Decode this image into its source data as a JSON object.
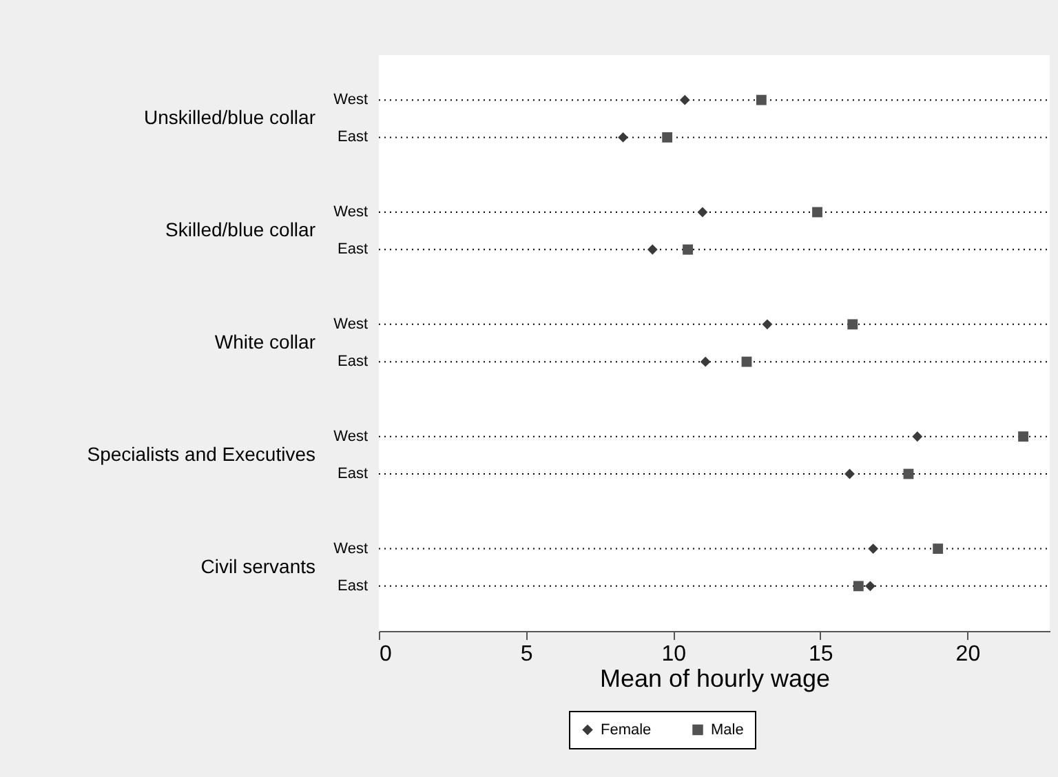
{
  "chart_data": {
    "type": "scatter",
    "orientation": "horizontal",
    "categories": [
      "West",
      "East",
      "West",
      "East",
      "West",
      "East",
      "West",
      "East",
      "West",
      "East"
    ],
    "annotations": [
      "Unskilled/blue collar",
      "Skilled/blue collar",
      "White collar",
      "Specialists and Executives",
      "Civil servants"
    ],
    "series": [
      {
        "name": "Female",
        "color": "#3a3a3a",
        "marker": "diamond",
        "values": [
          10.4,
          8.3,
          11.0,
          9.3,
          13.2,
          11.1,
          18.3,
          16.0,
          16.8,
          16.7
        ]
      },
      {
        "name": "Male",
        "color": "#525252",
        "marker": "square",
        "values": [
          13.0,
          9.8,
          14.9,
          10.5,
          16.1,
          12.5,
          21.9,
          18.0,
          19.0,
          16.3
        ]
      }
    ],
    "xlabel": "Mean of hourly wage",
    "xlim": [
      0,
      22.8
    ],
    "xticks": [
      0,
      5,
      10,
      15,
      20
    ],
    "grid": "y",
    "line_style": "dotted",
    "legend": "bottom"
  }
}
